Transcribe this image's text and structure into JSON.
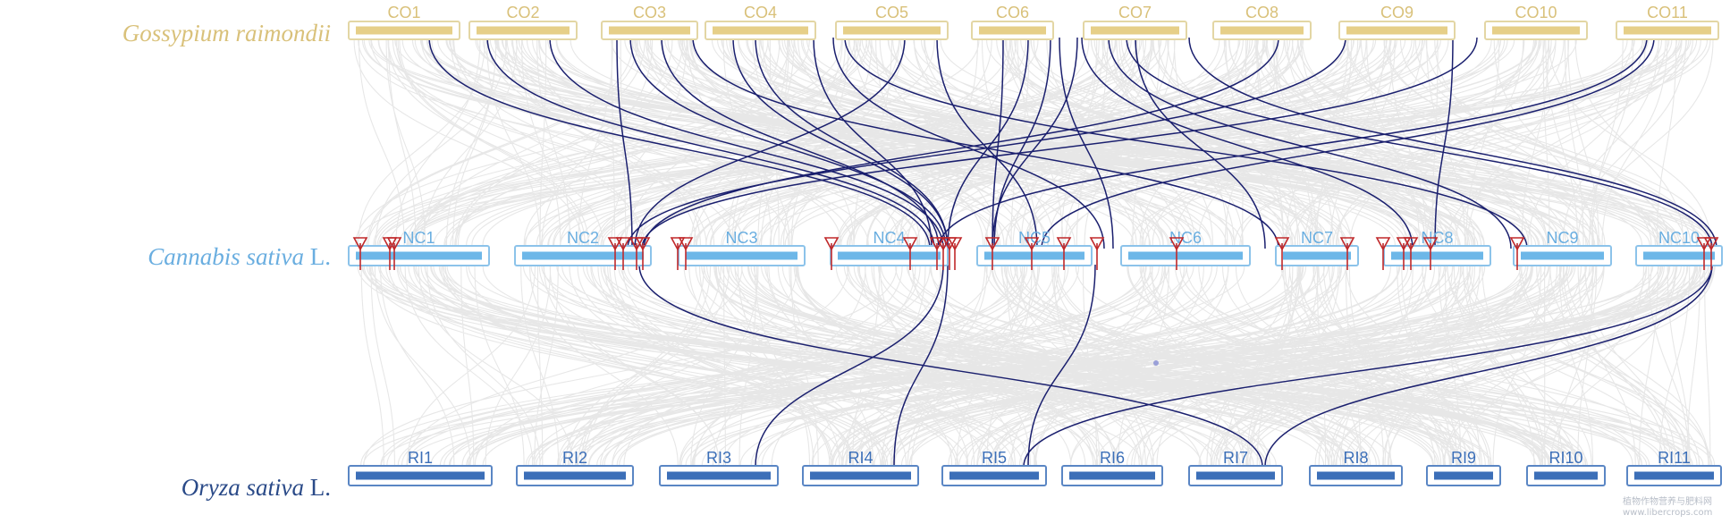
{
  "species": {
    "top": {
      "italic": "Gossypium raimondii",
      "suffix": "",
      "color": "#d9c17a"
    },
    "middle": {
      "italic": "Cannabis sativa",
      "suffix": " L.",
      "color": "#6aaee0"
    },
    "bottom": {
      "italic": "Oryza sativa",
      "suffix": " L.",
      "color": "#2a4a88"
    }
  },
  "tracks": {
    "top": {
      "fill": "#e6cf88",
      "stroke": "#e3d6a4",
      "chromosomes": [
        "CO1",
        "CO2",
        "CO3",
        "CO4",
        "CO5",
        "CO6",
        "CO7",
        "CO8",
        "CO9",
        "CO10",
        "CO11"
      ]
    },
    "middle": {
      "fill": "#6db7e8",
      "stroke": "#8cc3ea",
      "chromosomes": [
        "NC1",
        "NC2",
        "NC3",
        "NC4",
        "NC5",
        "NC6",
        "NC7",
        "NC8",
        "NC9",
        "NC10"
      ]
    },
    "bottom": {
      "fill": "#3c6fb8",
      "stroke": "#5a86c4",
      "chromosomes": [
        "RI1",
        "RI2",
        "RI3",
        "RI4",
        "RI5",
        "RI6",
        "RI7",
        "RI8",
        "RI9",
        "RI10",
        "RI11"
      ]
    }
  },
  "colors": {
    "background_links": "#e4e4e4",
    "highlight_links": "#1a1f6e",
    "gene_markers": "#c0282a",
    "label_top": "#d9c17a",
    "label_middle": "#6aaee0",
    "label_bottom": "#3c6fb8"
  },
  "watermark": [
    "植物作物营养与肥料网",
    "www.libercrops.com"
  ]
}
